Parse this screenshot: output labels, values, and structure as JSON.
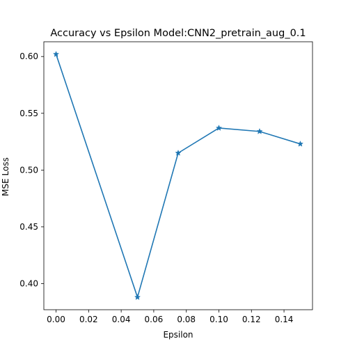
{
  "chart_data": {
    "type": "line",
    "title": "Accuracy vs Epsilon Model:CNN2_pretrain_aug_0.1",
    "xlabel": "Epsilon",
    "ylabel": "MSE Loss",
    "x": [
      0.0,
      0.05,
      0.075,
      0.1,
      0.125,
      0.15
    ],
    "series": [
      {
        "values": [
          0.602,
          0.388,
          0.515,
          0.537,
          0.534,
          0.523
        ],
        "color": "#1f77b4",
        "marker": "star"
      }
    ],
    "xlim": [
      -0.0075,
      0.1575
    ],
    "ylim": [
      0.377,
      0.613
    ],
    "xticks": [
      0.0,
      0.02,
      0.04,
      0.06,
      0.08,
      0.1,
      0.12,
      0.14
    ],
    "xtick_labels": [
      "0.00",
      "0.02",
      "0.04",
      "0.06",
      "0.08",
      "0.10",
      "0.12",
      "0.14"
    ],
    "yticks": [
      0.4,
      0.45,
      0.5,
      0.55,
      0.6
    ],
    "ytick_labels": [
      "0.40",
      "0.45",
      "0.50",
      "0.55",
      "0.60"
    ],
    "grid": false,
    "legend": "none"
  }
}
